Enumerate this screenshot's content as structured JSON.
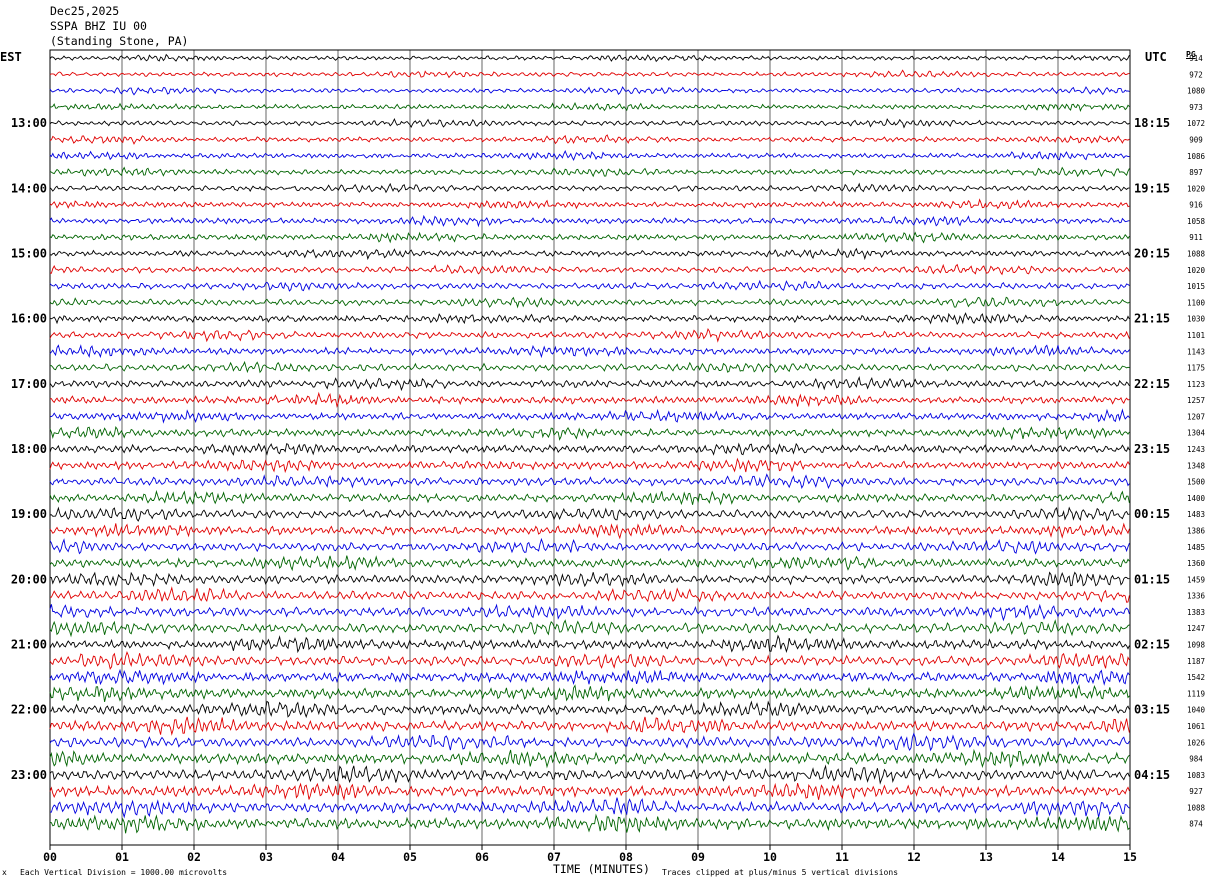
{
  "header": {
    "date": "Dec25,2025",
    "station": "SSPA BHZ IU 00",
    "location": "(Standing Stone, PA)"
  },
  "left_axis_title": "EST",
  "right_axis_title": "UTC",
  "right_col_title": "PG",
  "footer": {
    "left_mark": "x",
    "scale_note": "Each Vertical Division = 1000.00 microvolts",
    "clip_note": "Traces clipped at plus/minus 5 vertical divisions"
  },
  "chart_data": {
    "type": "line",
    "title": "",
    "xlabel": "TIME (MINUTES)",
    "ylabel": "",
    "xlim": [
      0,
      15
    ],
    "x_ticks": [
      "00",
      "01",
      "02",
      "03",
      "04",
      "05",
      "06",
      "07",
      "08",
      "09",
      "10",
      "11",
      "12",
      "13",
      "14",
      "15"
    ],
    "trace_colors": [
      "#000000",
      "#e00000",
      "#0000e0",
      "#006400"
    ],
    "left_time_labels": [
      "13:00",
      "14:00",
      "15:00",
      "16:00",
      "17:00",
      "18:00",
      "19:00",
      "20:00",
      "21:00",
      "22:00",
      "23:00"
    ],
    "right_time_labels": [
      "18:15",
      "19:15",
      "20:15",
      "21:15",
      "22:15",
      "23:15",
      "00:15",
      "01:15",
      "02:15",
      "03:15",
      "04:15"
    ],
    "right_values": [
      "914",
      "972",
      "1080",
      "973",
      "1072",
      "909",
      "1086",
      "897",
      "1020",
      "916",
      "1058",
      "911",
      "1088",
      "1020",
      "1015",
      "1100",
      "1030",
      "1101",
      "1143",
      "1175",
      "1123",
      "1257",
      "1207",
      "1304",
      "1243",
      "1348",
      "1500",
      "1400",
      "1483",
      "1386",
      "1485",
      "1360",
      "1459",
      "1336",
      "1383",
      "1247",
      "1098",
      "1187",
      "1542",
      "1119",
      "1040",
      "1061",
      "1026",
      "984",
      "1083",
      "927",
      "1088",
      "874"
    ],
    "grid": true
  }
}
